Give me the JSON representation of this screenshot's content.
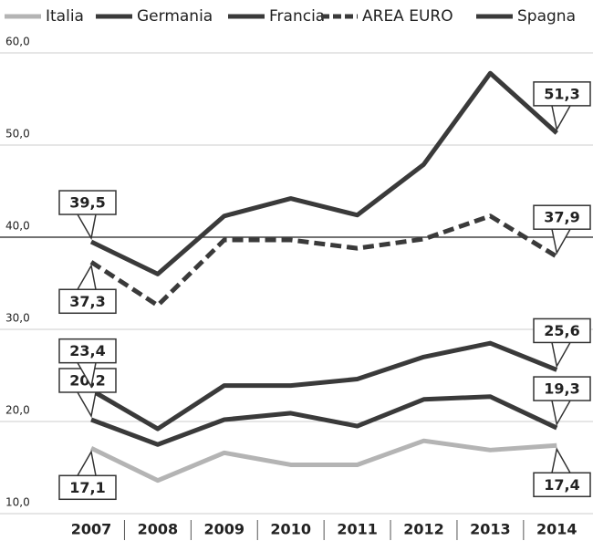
{
  "chart_data": {
    "type": "line",
    "categories": [
      "2007",
      "2008",
      "2009",
      "2010",
      "2011",
      "2012",
      "2013",
      "2014"
    ],
    "ylim": [
      10,
      60
    ],
    "yticks": [
      {
        "value": 10,
        "label": "10,0"
      },
      {
        "value": 20,
        "label": "20,0"
      },
      {
        "value": 30,
        "label": "30,0"
      },
      {
        "value": 40,
        "label": "40,0"
      },
      {
        "value": 50,
        "label": "50,0"
      },
      {
        "value": 60,
        "label": "60,0"
      }
    ],
    "grid": true,
    "series": [
      {
        "name": "Italia",
        "color": "#b4b4b4",
        "style": "solid",
        "values": [
          17.1,
          13.6,
          16.6,
          15.3,
          15.3,
          17.9,
          16.9,
          17.4
        ],
        "value_labels": [
          "17,1",
          null,
          null,
          null,
          null,
          null,
          null,
          "17,4"
        ]
      },
      {
        "name": "Germania",
        "color": "#3a3a3a",
        "style": "solid",
        "values": [
          20.2,
          17.5,
          20.2,
          20.9,
          19.5,
          22.4,
          22.7,
          19.3
        ],
        "value_labels": [
          "20,2",
          null,
          null,
          null,
          null,
          null,
          null,
          "19,3"
        ]
      },
      {
        "name": "Francia",
        "color": "#3a3a3a",
        "style": "solid",
        "values": [
          23.4,
          19.2,
          23.9,
          23.9,
          24.6,
          27.0,
          28.5,
          25.6
        ],
        "value_labels": [
          "23,4",
          null,
          null,
          null,
          null,
          null,
          null,
          "25,6"
        ]
      },
      {
        "name": "AREA EURO",
        "color": "#3a3a3a",
        "style": "dashed",
        "values": [
          37.3,
          32.6,
          39.7,
          39.7,
          38.8,
          39.8,
          42.3,
          37.9
        ],
        "value_labels": [
          "37,3",
          null,
          null,
          null,
          null,
          null,
          null,
          "37,9"
        ]
      },
      {
        "name": "Spagna",
        "color": "#3a3a3a",
        "style": "solid",
        "values": [
          39.5,
          36.0,
          42.3,
          44.2,
          42.4,
          47.9,
          57.8,
          51.3
        ],
        "value_labels": [
          "39,5",
          null,
          null,
          null,
          null,
          null,
          null,
          "51,3"
        ]
      }
    ]
  }
}
